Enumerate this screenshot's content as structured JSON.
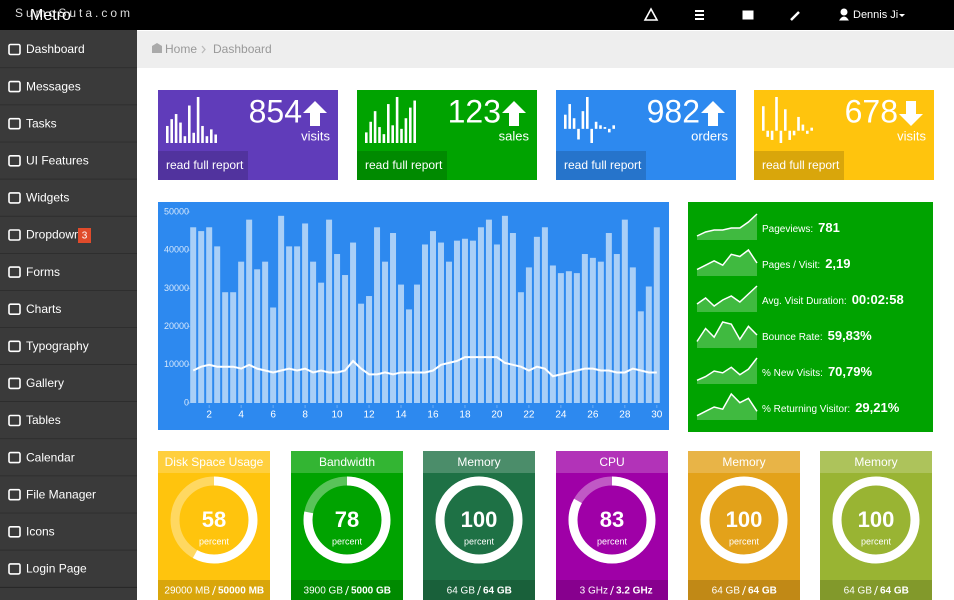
{
  "header": {
    "brand": "Metro",
    "watermark": "SumoSuta.com",
    "user": "Dennis Ji"
  },
  "sidebar": {
    "items": [
      {
        "label": "Dashboard"
      },
      {
        "label": "Messages"
      },
      {
        "label": "Tasks"
      },
      {
        "label": "UI Features"
      },
      {
        "label": "Widgets"
      },
      {
        "label": "Dropdown",
        "badge": 3
      },
      {
        "label": "Forms"
      },
      {
        "label": "Charts"
      },
      {
        "label": "Typography"
      },
      {
        "label": "Gallery"
      },
      {
        "label": "Tables"
      },
      {
        "label": "Calendar"
      },
      {
        "label": "File Manager"
      },
      {
        "label": "Icons"
      },
      {
        "label": "Login Page"
      }
    ]
  },
  "breadcrumb": [
    "Home",
    "Dashboard"
  ],
  "stats": [
    {
      "value": 854,
      "label": "visits",
      "trend": "up",
      "color": "#603cba",
      "link": "read full report",
      "spark": [
        10,
        14,
        17,
        12,
        4,
        22,
        6,
        27,
        10,
        4,
        8,
        5
      ]
    },
    {
      "value": 123,
      "label": "sales",
      "trend": "up",
      "color": "#00a300",
      "link": "read full report",
      "spark": [
        6,
        12,
        18,
        9,
        5,
        22,
        10,
        26,
        8,
        14,
        20,
        24
      ]
    },
    {
      "value": 982,
      "label": "orders",
      "trend": "up",
      "color": "#2d89ef",
      "link": "read full report",
      "spark": [
        8,
        14,
        6,
        -6,
        10,
        18,
        -8,
        4,
        2,
        1,
        -2,
        2
      ]
    },
    {
      "value": 678,
      "label": "visits",
      "trend": "down",
      "color": "#ffc40d",
      "link": "read full report",
      "spark": [
        16,
        -4,
        -6,
        22,
        -8,
        14,
        -6,
        -3,
        9,
        4,
        -2,
        2
      ]
    }
  ],
  "chart_data": {
    "type": "bar",
    "x": [
      1,
      1.5,
      2,
      2.5,
      3,
      3.5,
      4,
      4.5,
      5,
      5.5,
      6,
      6.5,
      7,
      7.5,
      8,
      8.5,
      9,
      9.5,
      10,
      10.5,
      11,
      11.5,
      12,
      12.5,
      13,
      13.5,
      14,
      14.5,
      15,
      15.5,
      16,
      16.5,
      17,
      17.5,
      18,
      18.5,
      19,
      19.5,
      20,
      20.5,
      21,
      21.5,
      22,
      22.5,
      23,
      23.5,
      24,
      24.5,
      25,
      25.5,
      26,
      26.5,
      27,
      27.5,
      28,
      28.5,
      29,
      29.5,
      30
    ],
    "series": [
      {
        "type": "bar",
        "color": "#a9cff7",
        "values": [
          46000,
          45000,
          46000,
          41000,
          29000,
          29000,
          37000,
          48000,
          35000,
          37000,
          25000,
          49000,
          41000,
          41000,
          47000,
          37000,
          31500,
          48000,
          39000,
          33500,
          42000,
          26000,
          28000,
          46000,
          37000,
          44500,
          31000,
          24500,
          31000,
          41500,
          45000,
          42000,
          37000,
          42500,
          43000,
          42500,
          46000,
          48000,
          41500,
          49000,
          44500,
          29000,
          35500,
          43500,
          46000,
          36000,
          34000,
          34500,
          34000,
          39000,
          38000,
          37000,
          44500,
          39000,
          48000,
          35500,
          24000,
          30500,
          46000
        ]
      },
      {
        "type": "line",
        "color": "#ffffff",
        "values": [
          8500,
          9500,
          10000,
          9500,
          9500,
          9500,
          9000,
          10000,
          9000,
          8500,
          8000,
          8500,
          9000,
          8500,
          9000,
          8000,
          8500,
          8000,
          8000,
          8500,
          11000,
          9000,
          7500,
          7500,
          8000,
          7500,
          8000,
          8000,
          8000,
          8000,
          8500,
          10000,
          10500,
          11000,
          12000,
          12000,
          12000,
          12000,
          12000,
          10500,
          10000,
          9500,
          8500,
          9500,
          9000,
          7000,
          7500,
          8000,
          8500,
          9000,
          9000,
          8500,
          8500,
          8000,
          8000,
          9000,
          8500,
          8000,
          8000
        ]
      }
    ],
    "xlim": [
      0.8,
      30.2
    ],
    "xticks": [
      2,
      4,
      6,
      8,
      10,
      12,
      14,
      16,
      18,
      20,
      22,
      24,
      26,
      28,
      30
    ],
    "ylim": [
      0,
      50000
    ],
    "yticks": [
      0,
      10000,
      20000,
      30000,
      40000,
      50000
    ],
    "background": "#2d89ef"
  },
  "metrics": [
    {
      "label": "Pageviews:",
      "value": "781",
      "spark": [
        2,
        4,
        5,
        5,
        6,
        6,
        9,
        13
      ]
    },
    {
      "label": "Pages / Visit:",
      "value": "2,19",
      "spark": [
        3,
        5,
        7,
        5,
        10,
        9,
        12,
        6
      ]
    },
    {
      "label": "Avg. Visit Duration:",
      "value": "00:02:58",
      "spark": [
        4,
        7,
        3,
        6,
        8,
        5,
        9,
        13
      ]
    },
    {
      "label": "Bounce Rate:",
      "value": "59,83%",
      "spark": [
        3,
        9,
        5,
        12,
        11,
        4,
        10,
        6
      ]
    },
    {
      "label": "% New Visits:",
      "value": "70,79%",
      "spark": [
        2,
        4,
        7,
        6,
        9,
        5,
        8,
        14
      ]
    },
    {
      "label": "% Returning Visitor:",
      "value": "29,21%",
      "spark": [
        2,
        4,
        6,
        5,
        12,
        8,
        10,
        4
      ]
    }
  ],
  "gauges": [
    {
      "title": "Disk Space Usage",
      "value": 58,
      "unit": "percent",
      "used": "29000 MB",
      "total": "50000 MB",
      "color": "#ffc40d"
    },
    {
      "title": "Bandwidth",
      "value": 78,
      "unit": "percent",
      "used": "3900 GB",
      "total": "5000 GB",
      "color": "#00a300"
    },
    {
      "title": "Memory",
      "value": 100,
      "unit": "percent",
      "used": "64 GB",
      "total": "64 GB",
      "color": "#1e7145"
    },
    {
      "title": "CPU",
      "value": 83,
      "unit": "percent",
      "used": "3 GHz",
      "total": "3.2 GHz",
      "color": "#9f00a7"
    },
    {
      "title": "Memory",
      "value": 100,
      "unit": "percent",
      "used": "64 GB",
      "total": "64 GB",
      "color": "#e3a21a"
    },
    {
      "title": "Memory",
      "value": 100,
      "unit": "percent",
      "used": "64 GB",
      "total": "64 GB",
      "color": "#99b433"
    }
  ]
}
